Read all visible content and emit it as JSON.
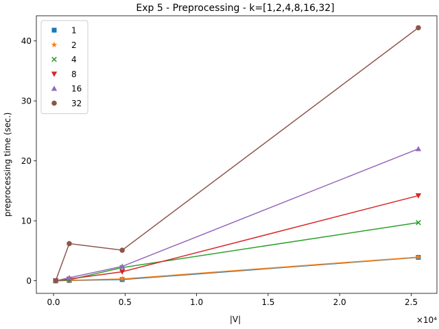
{
  "chart_data": {
    "type": "line",
    "title": "Exp 5 - Preprocessing - k=[1,2,4,8,16,32]",
    "xlabel": "|V|",
    "ylabel": "preprocessing time (sec.)",
    "x_multiplier_label": "×10⁴",
    "xlim": [
      -0.12,
      2.68
    ],
    "ylim": [
      -2.1,
      44.2
    ],
    "x_ticks": [
      0.0,
      0.5,
      1.0,
      1.5,
      2.0,
      2.5
    ],
    "x_tick_labels": [
      "0.0",
      "0.5",
      "1.0",
      "1.5",
      "2.0",
      "2.5"
    ],
    "y_ticks": [
      0,
      10,
      20,
      30,
      40
    ],
    "y_tick_labels": [
      "0",
      "10",
      "20",
      "30",
      "40"
    ],
    "grid": false,
    "legend_position": "top-left",
    "x": [
      0.015,
      0.11,
      0.48,
      2.55
    ],
    "series": [
      {
        "name": "1",
        "values": [
          0.0,
          0.05,
          0.2,
          3.9
        ],
        "color": "#1f77b4",
        "marker": "square"
      },
      {
        "name": "2",
        "values": [
          0.0,
          0.08,
          0.3,
          3.95
        ],
        "color": "#ff7f0e",
        "marker": "star"
      },
      {
        "name": "4",
        "values": [
          0.0,
          0.15,
          2.2,
          9.7
        ],
        "color": "#2ca02c",
        "marker": "x"
      },
      {
        "name": "8",
        "values": [
          0.0,
          0.3,
          1.5,
          14.2
        ],
        "color": "#d62728",
        "marker": "triangle-down"
      },
      {
        "name": "16",
        "values": [
          0.0,
          0.5,
          2.4,
          22.0
        ],
        "color": "#9467bd",
        "marker": "triangle-up"
      },
      {
        "name": "32",
        "values": [
          0.0,
          6.2,
          5.1,
          42.2
        ],
        "color": "#8c564b",
        "marker": "circle"
      }
    ]
  }
}
